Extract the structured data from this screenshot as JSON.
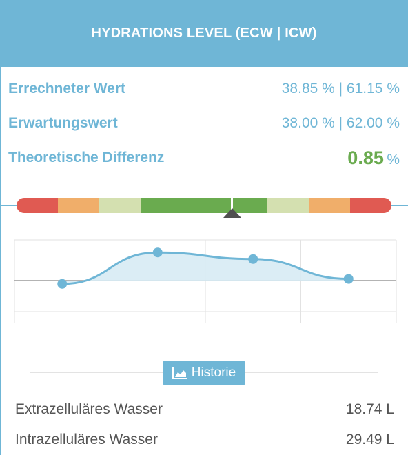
{
  "header": {
    "title": "HYDRATIONS LEVEL (ECW | ICW)"
  },
  "rows": {
    "calculated": {
      "label": "Errechneter Wert",
      "value": "38.85 % | 61.15 %"
    },
    "expected": {
      "label": "Erwartungswert",
      "value": "38.00 % | 62.00 %"
    },
    "difference": {
      "label": "Theoretische Differenz",
      "value": "0.85",
      "unit": "%"
    }
  },
  "gauge": {
    "segments": [
      "#e05a52",
      "#f0ae6a",
      "#d4e0b0",
      "#6aab4f",
      "#6aab4f",
      "#d4e0b0",
      "#f0ae6a",
      "#e05a52"
    ],
    "marker_position": 0.575
  },
  "chart_data": {
    "type": "line",
    "points": [
      -0.1,
      0.85,
      0.65,
      0.05
    ],
    "ylim": [
      -1,
      1
    ],
    "color": "#6fb6d6",
    "fill": "#d7ebf4"
  },
  "history_button": {
    "label": "Historie",
    "icon": "area-chart-icon"
  },
  "measurements": [
    {
      "label": "Extrazelluläres Wasser",
      "value": "18.74 L"
    },
    {
      "label": "Intrazelluläres Wasser",
      "value": "29.49 L"
    }
  ]
}
